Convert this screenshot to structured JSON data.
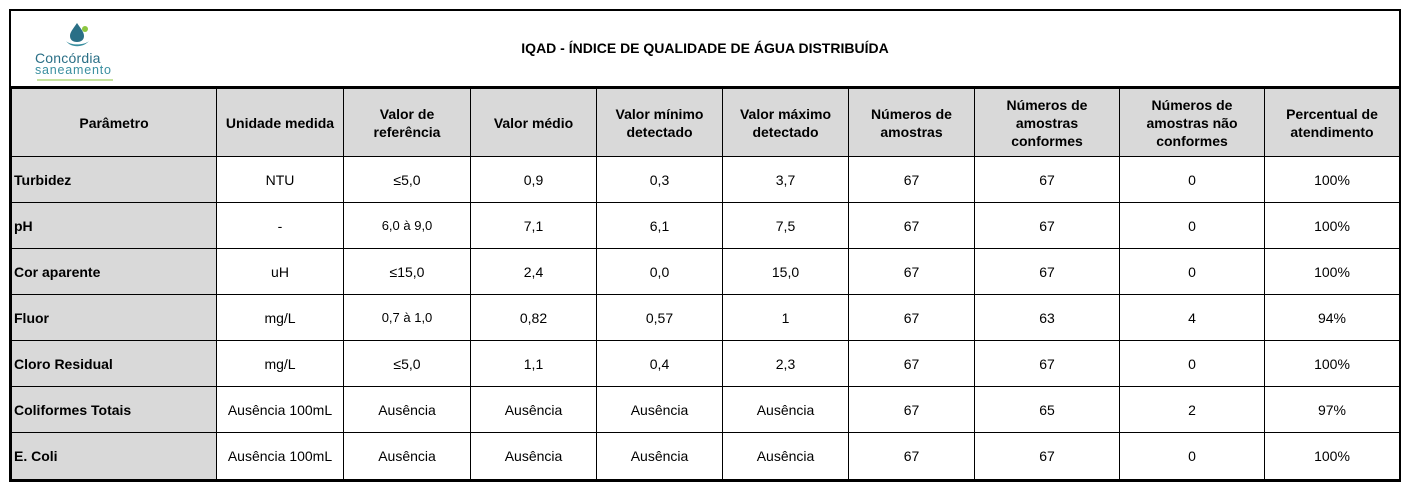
{
  "logo": {
    "brand": "Concórdia",
    "sub": "saneamento"
  },
  "title": "IQAD - ÍNDICE DE QUALIDADE DE ÁGUA DISTRIBUÍDA",
  "headers": [
    "Parâmetro",
    "Unidade medida",
    "Valor de referência",
    "Valor médio",
    "Valor mínimo detectado",
    "Valor máximo detectado",
    "Números de amostras",
    "Números de amostras conformes",
    "Números de amostras não conformes",
    "Percentual de atendimento"
  ],
  "rows": [
    [
      "Turbidez",
      "NTU",
      "≤5,0",
      "0,9",
      "0,3",
      "3,7",
      "67",
      "67",
      "0",
      "100%"
    ],
    [
      "pH",
      "-",
      "6,0 à 9,0",
      "7,1",
      "6,1",
      "7,5",
      "67",
      "67",
      "0",
      "100%"
    ],
    [
      "Cor aparente",
      "uH",
      "≤15,0",
      "2,4",
      "0,0",
      "15,0",
      "67",
      "67",
      "0",
      "100%"
    ],
    [
      "Fluor",
      "mg/L",
      "0,7 à 1,0",
      "0,82",
      "0,57",
      "1",
      "67",
      "63",
      "4",
      "94%"
    ],
    [
      "Cloro Residual",
      "mg/L",
      "≤5,0",
      "1,1",
      "0,4",
      "2,3",
      "67",
      "67",
      "0",
      "100%"
    ],
    [
      "Coliformes Totais",
      "Ausência 100mL",
      "Ausência",
      "Ausência",
      "Ausência",
      "Ausência",
      "67",
      "65",
      "2",
      "97%"
    ],
    [
      "E. Coli",
      "Ausência 100mL",
      "Ausência",
      "Ausência",
      "Ausência",
      "Ausência",
      "67",
      "67",
      "0",
      "100%"
    ]
  ]
}
